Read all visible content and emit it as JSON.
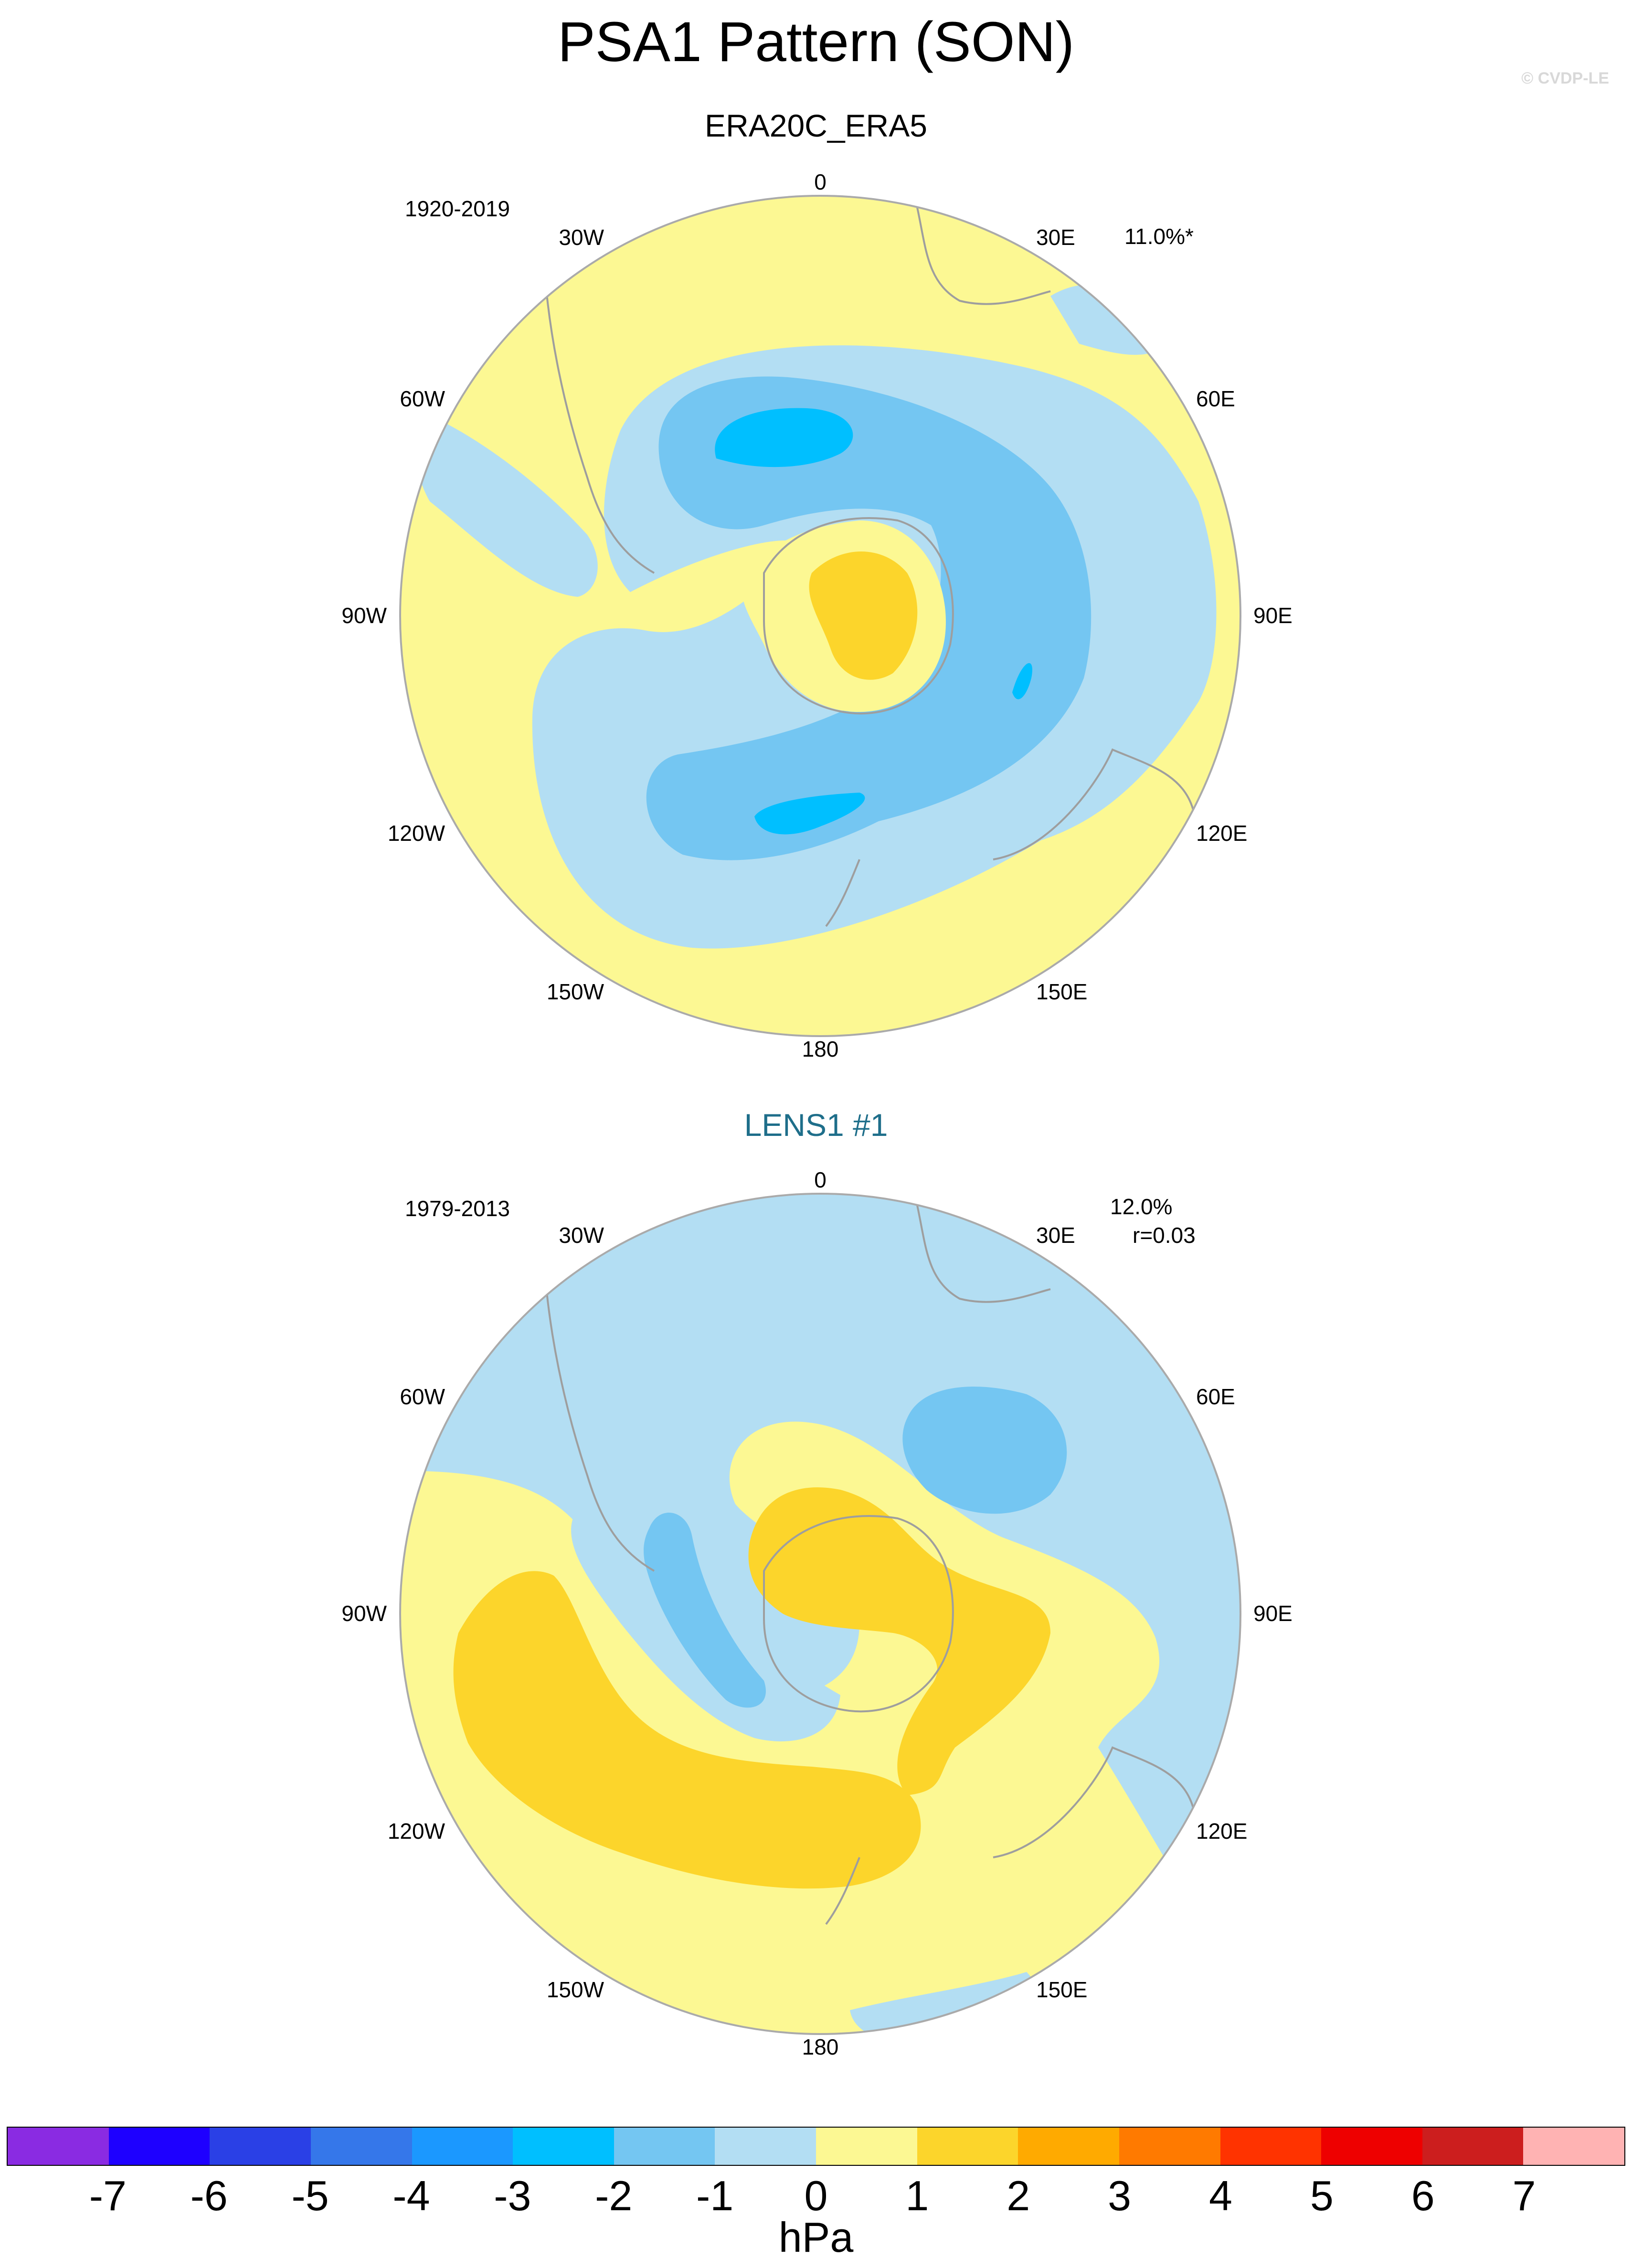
{
  "title": "PSA1 Pattern (SON)",
  "copyright": "© CVDP-LE",
  "colors": {
    "pos1": "#fcf893",
    "pos2": "#fcd52b",
    "neg1": "#b3def3",
    "neg2": "#74c6f2",
    "neg3": "#00bfff",
    "land": "#9e9e9e",
    "rim": "#aaaaaa"
  },
  "longitude_labels": [
    "0",
    "30E",
    "60E",
    "90E",
    "120E",
    "150E",
    "180",
    "150W",
    "120W",
    "90W",
    "60W",
    "30W"
  ],
  "panels": [
    {
      "title": "ERA20C_ERA5",
      "period": "1920-2019",
      "pct": "11.0%*",
      "corr": ""
    },
    {
      "title": "LENS1 #1",
      "period": "1979-2013",
      "pct": "12.0%",
      "corr": "r=0.03"
    }
  ],
  "colorbar": {
    "colors": [
      "#8a2be2",
      "#1e00ff",
      "#2a40e6",
      "#3577ea",
      "#1b98ff",
      "#00bfff",
      "#74c6f2",
      "#b3def3",
      "#fcf893",
      "#fcd52b",
      "#ffaa00",
      "#ff7a00",
      "#ff3300",
      "#ee0000",
      "#cc1e1e",
      "#ffb3b3"
    ],
    "ticks": [
      "-7",
      "-6",
      "-5",
      "-4",
      "-3",
      "-2",
      "-1",
      "0",
      "1",
      "2",
      "3",
      "4",
      "5",
      "6",
      "7"
    ],
    "unit": "hPa"
  }
}
